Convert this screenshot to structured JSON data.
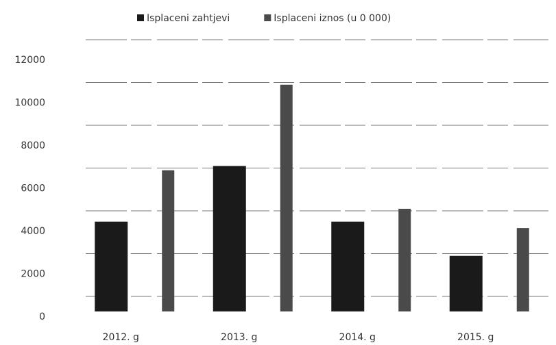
{
  "chart_data": {
    "type": "bar",
    "categories": [
      "2012. g",
      "2013. g",
      "2014. g",
      "2015. g"
    ],
    "series": [
      {
        "name": "Isplaceni zahtjevi",
        "color": "#1a1a1a",
        "values": [
          4200,
          6800,
          4200,
          2600
        ]
      },
      {
        "name": "Isplaceni iznos (u 0 000)",
        "color": "#4a4a4a",
        "values": [
          6600,
          10600,
          4800,
          3900
        ]
      }
    ],
    "ylim": [
      0,
      12000
    ],
    "yticks": [
      0,
      2000,
      4000,
      6000,
      8000,
      10000,
      12000
    ],
    "grid": true,
    "legend": "top"
  }
}
